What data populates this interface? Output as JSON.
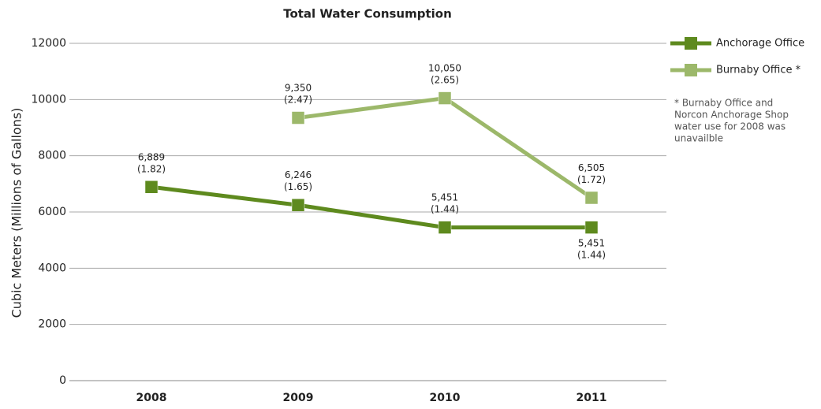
{
  "chart_data": {
    "type": "line",
    "title": "Total Water Consumption",
    "y_label": "Cubic Meters (Millions of Gallons)",
    "categories": [
      "2008",
      "2009",
      "2010",
      "2011"
    ],
    "series": [
      {
        "name": "Anchorage Office",
        "color": "#5e8a1e",
        "values": [
          6889,
          6246,
          5451,
          5451
        ],
        "value_labels": [
          "6,889",
          "6,246",
          "5,451",
          "5,451"
        ],
        "value_labels_gallons": [
          "(1.82)",
          "(1.65)",
          "(1.44)",
          "(1.44)"
        ]
      },
      {
        "name": "Burnaby Office *",
        "color": "#9cb86a",
        "values": [
          null,
          9350,
          10050,
          6505
        ],
        "value_labels": [
          null,
          "9,350",
          "10,050",
          "6,505"
        ],
        "value_labels_gallons": [
          null,
          "(2.47)",
          "(2.65)",
          "(1.72)"
        ]
      }
    ],
    "ylim": [
      0,
      12000
    ],
    "yticks": [
      0,
      2000,
      4000,
      6000,
      8000,
      10000,
      12000
    ],
    "grid": true,
    "legend": "right",
    "note": [
      "* Burnaby Office and",
      "Norcon Anchorage Shop",
      "water use for 2008 was",
      "unavailble"
    ]
  }
}
